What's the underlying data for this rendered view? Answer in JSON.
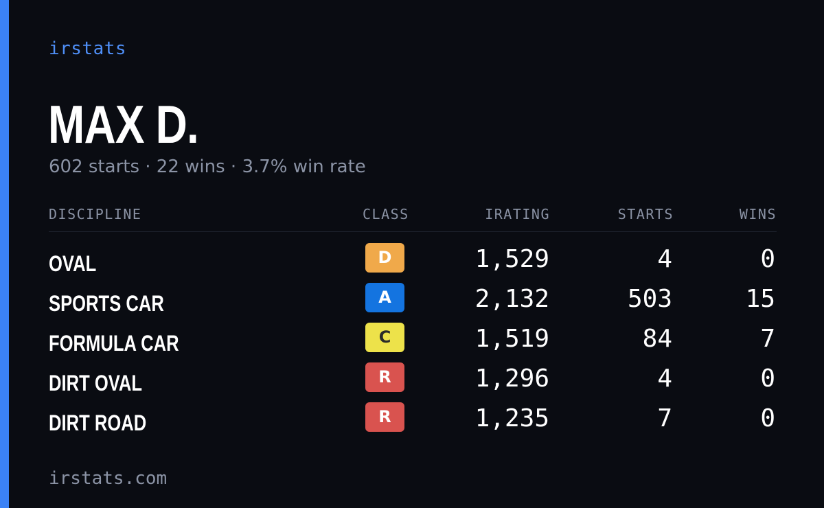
{
  "brand": "irstats",
  "driver": {
    "name": "MAX D.",
    "summary": "602 starts · 22 wins · 3.7% win rate"
  },
  "table": {
    "headers": {
      "discipline": "DISCIPLINE",
      "class": "CLASS",
      "irating": "IRATING",
      "starts": "STARTS",
      "wins": "WINS"
    },
    "rows": [
      {
        "discipline": "OVAL",
        "class": "D",
        "class_color": "#f0a94a",
        "class_text_color": "#ffffff",
        "irating": "1,529",
        "starts": "4",
        "wins": "0"
      },
      {
        "discipline": "SPORTS CAR",
        "class": "A",
        "class_color": "#1474e0",
        "class_text_color": "#ffffff",
        "irating": "2,132",
        "starts": "503",
        "wins": "15"
      },
      {
        "discipline": "FORMULA CAR",
        "class": "C",
        "class_color": "#ede24a",
        "class_text_color": "#2a2a2a",
        "irating": "1,519",
        "starts": "84",
        "wins": "7"
      },
      {
        "discipline": "DIRT OVAL",
        "class": "R",
        "class_color": "#d9534f",
        "class_text_color": "#ffffff",
        "irating": "1,296",
        "starts": "4",
        "wins": "0"
      },
      {
        "discipline": "DIRT ROAD",
        "class": "R",
        "class_color": "#d9534f",
        "class_text_color": "#ffffff",
        "irating": "1,235",
        "starts": "7",
        "wins": "0"
      }
    ]
  },
  "footer": "irstats.com",
  "colors": {
    "accent": "#3b82f6",
    "background": "#0a0c12",
    "muted": "#8b93a5"
  }
}
